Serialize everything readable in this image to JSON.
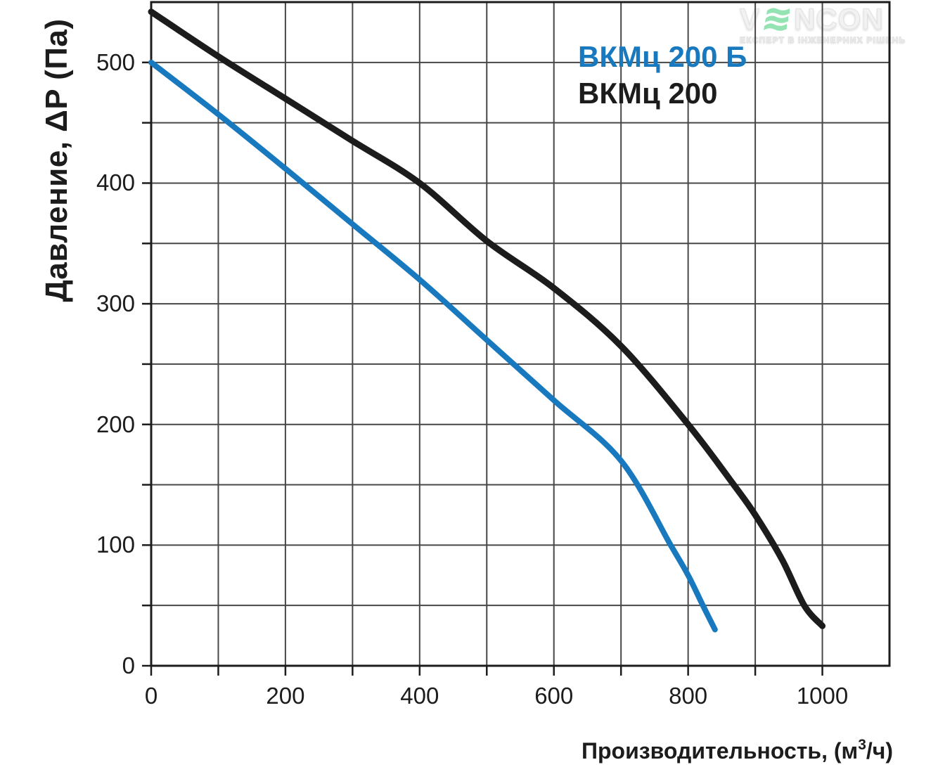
{
  "chart_data": {
    "type": "line",
    "title": "",
    "xlabel": {
      "main": "Производительность, (м",
      "sup": "3",
      "end": "/ч)"
    },
    "ylabel": "Давление, ΔP (Па)",
    "xlim": [
      0,
      1100
    ],
    "ylim": [
      0,
      550
    ],
    "x_grid_step": 100,
    "y_grid_step": 50,
    "x_tick_step": 100,
    "y_tick_step": 50,
    "grid": true,
    "x_tick_labels": [
      "0",
      "200",
      "400",
      "600",
      "800",
      "1000"
    ],
    "x_tick_values": [
      0,
      200,
      400,
      600,
      800,
      1000
    ],
    "y_tick_labels": [
      "0",
      "100",
      "200",
      "300",
      "400",
      "500"
    ],
    "y_tick_values": [
      0,
      100,
      200,
      300,
      400,
      500
    ],
    "legend_position": "inside-top-right",
    "series": [
      {
        "name": "ВКМц 200 Б",
        "color": "#1879bf",
        "points": [
          [
            0,
            500
          ],
          [
            100,
            457
          ],
          [
            200,
            412
          ],
          [
            300,
            366
          ],
          [
            400,
            320
          ],
          [
            500,
            270
          ],
          [
            600,
            220
          ],
          [
            700,
            170
          ],
          [
            774,
            100
          ],
          [
            800,
            75
          ],
          [
            822,
            50
          ],
          [
            840,
            30
          ]
        ]
      },
      {
        "name": "ВКМц 200",
        "color": "#1c1c1c",
        "points": [
          [
            0,
            542
          ],
          [
            100,
            505
          ],
          [
            200,
            470
          ],
          [
            300,
            435
          ],
          [
            400,
            400
          ],
          [
            500,
            352
          ],
          [
            600,
            313
          ],
          [
            700,
            265
          ],
          [
            800,
            200
          ],
          [
            868,
            150
          ],
          [
            900,
            125
          ],
          [
            940,
            88
          ],
          [
            973,
            50
          ],
          [
            1000,
            33
          ]
        ]
      }
    ]
  },
  "watermark": {
    "prefix": "V",
    "suffix": "NCON",
    "tagline": "ЕКСПЕРТ В ІНЖЕНЕРНИХ РІШЕНЬ",
    "icon_color": "#8fe2af",
    "text_color": "#f2f2f2"
  }
}
